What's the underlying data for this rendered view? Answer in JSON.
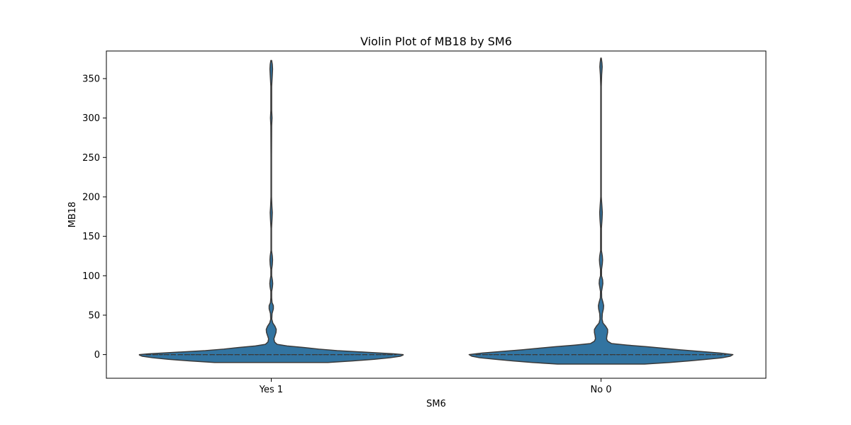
{
  "chart_data": {
    "type": "violin",
    "title": "Violin Plot of MB18 by SM6",
    "xlabel": "SM6",
    "ylabel": "MB18",
    "categories": [
      "Yes 1",
      "No 0"
    ],
    "ylim": [
      -30,
      385
    ],
    "yticks": [
      0,
      50,
      100,
      150,
      200,
      250,
      300,
      350
    ],
    "color": "#3274a1",
    "edge_color": "#3a3a3a",
    "grid": false,
    "legend": "none",
    "violins": [
      {
        "category": "Yes 1",
        "range": [
          -10,
          373
        ],
        "median": 0,
        "q1": 0,
        "q3": 0,
        "density": [
          [
            -10,
            0.43
          ],
          [
            -8,
            0.62
          ],
          [
            -6,
            0.78
          ],
          [
            -4,
            0.9
          ],
          [
            -2,
            0.98
          ],
          [
            -0.5,
            1.0
          ],
          [
            0,
            1.0
          ],
          [
            1,
            0.93
          ],
          [
            3,
            0.72
          ],
          [
            5,
            0.5
          ],
          [
            7,
            0.36
          ],
          [
            9,
            0.25
          ],
          [
            11,
            0.12
          ],
          [
            13,
            0.045
          ],
          [
            16,
            0.025
          ],
          [
            20,
            0.02
          ],
          [
            24,
            0.028
          ],
          [
            28,
            0.036
          ],
          [
            32,
            0.038
          ],
          [
            36,
            0.028
          ],
          [
            40,
            0.012
          ],
          [
            45,
            0.004
          ],
          [
            52,
            0.006
          ],
          [
            58,
            0.016
          ],
          [
            62,
            0.016
          ],
          [
            66,
            0.006
          ],
          [
            72,
            0.003
          ],
          [
            80,
            0.003
          ],
          [
            86,
            0.009
          ],
          [
            90,
            0.011
          ],
          [
            94,
            0.009
          ],
          [
            100,
            0.003
          ],
          [
            108,
            0.003
          ],
          [
            114,
            0.008
          ],
          [
            120,
            0.01
          ],
          [
            125,
            0.008
          ],
          [
            132,
            0.002
          ],
          [
            160,
            0.002
          ],
          [
            172,
            0.006
          ],
          [
            180,
            0.008
          ],
          [
            188,
            0.005
          ],
          [
            200,
            0.002
          ],
          [
            250,
            0.002
          ],
          [
            290,
            0.003
          ],
          [
            300,
            0.006
          ],
          [
            310,
            0.003
          ],
          [
            340,
            0.003
          ],
          [
            355,
            0.008
          ],
          [
            362,
            0.01
          ],
          [
            368,
            0.008
          ],
          [
            373,
            0.003
          ]
        ]
      },
      {
        "category": "No 0",
        "range": [
          -12,
          376
        ],
        "median": 0,
        "q1": 0,
        "q3": 0,
        "density": [
          [
            -12,
            0.33
          ],
          [
            -10,
            0.52
          ],
          [
            -8,
            0.67
          ],
          [
            -6,
            0.8
          ],
          [
            -4,
            0.92
          ],
          [
            -2,
            0.98
          ],
          [
            0,
            1.0
          ],
          [
            2,
            0.9
          ],
          [
            4,
            0.75
          ],
          [
            6,
            0.6
          ],
          [
            8,
            0.48
          ],
          [
            10,
            0.35
          ],
          [
            12,
            0.2
          ],
          [
            14,
            0.08
          ],
          [
            17,
            0.05
          ],
          [
            20,
            0.042
          ],
          [
            24,
            0.045
          ],
          [
            28,
            0.05
          ],
          [
            32,
            0.05
          ],
          [
            36,
            0.035
          ],
          [
            40,
            0.015
          ],
          [
            45,
            0.008
          ],
          [
            52,
            0.01
          ],
          [
            58,
            0.018
          ],
          [
            62,
            0.02
          ],
          [
            66,
            0.015
          ],
          [
            72,
            0.005
          ],
          [
            80,
            0.004
          ],
          [
            86,
            0.01
          ],
          [
            90,
            0.014
          ],
          [
            95,
            0.012
          ],
          [
            100,
            0.004
          ],
          [
            108,
            0.004
          ],
          [
            115,
            0.01
          ],
          [
            120,
            0.012
          ],
          [
            125,
            0.01
          ],
          [
            132,
            0.003
          ],
          [
            160,
            0.003
          ],
          [
            172,
            0.008
          ],
          [
            180,
            0.01
          ],
          [
            188,
            0.007
          ],
          [
            200,
            0.002
          ],
          [
            250,
            0.002
          ],
          [
            300,
            0.002
          ],
          [
            340,
            0.002
          ],
          [
            355,
            0.005
          ],
          [
            365,
            0.009
          ],
          [
            370,
            0.007
          ],
          [
            376,
            0.002
          ]
        ]
      }
    ]
  }
}
